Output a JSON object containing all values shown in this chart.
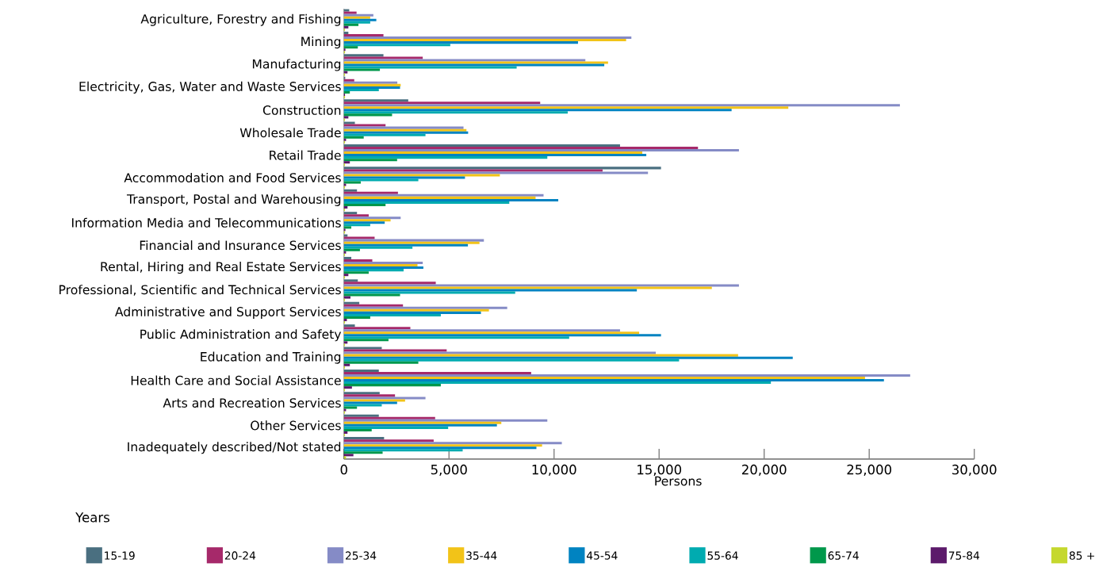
{
  "chart_data": {
    "type": "bar",
    "orientation": "horizontal",
    "xlabel": "Persons",
    "legend_title": "Years",
    "legend": "bottom",
    "categories": [
      "Agriculture, Forestry and Fishing",
      "Mining",
      "Manufacturing",
      "Electricity, Gas, Water and Waste Services",
      "Construction",
      "Wholesale Trade",
      "Retail Trade",
      "Accommodation and Food Services",
      "Transport, Postal and Warehousing",
      "Information Media and Telecommunications",
      "Financial and Insurance Services",
      "Rental, Hiring and Real Estate Services",
      "Professional, Scientific and Technical Services",
      "Administrative and Support Services",
      "Public Administration and Safety",
      "Education and Training",
      "Health Care and Social Assistance",
      "Arts and Recreation Services",
      "Other Services",
      "Inadequately described/Not stated"
    ],
    "xlim": [
      0,
      30000
    ],
    "xticks": [
      0,
      {
        "value": 5000,
        "label": "5,000"
      },
      {
        "value": 10000,
        "label": "10,000"
      },
      {
        "value": 15000,
        "label": "15,000"
      },
      {
        "value": 20000,
        "label": "20,000"
      },
      {
        "value": 25000,
        "label": "25,000"
      },
      {
        "value": 30000,
        "label": "30,000"
      }
    ],
    "series": [
      {
        "name": "15-19",
        "color": "#4a6f80",
        "values": [
          250,
          210,
          1880,
          60,
          3060,
          520,
          13140,
          15090,
          620,
          620,
          170,
          350,
          660,
          730,
          520,
          1800,
          1660,
          1700,
          1660,
          1910
        ]
      },
      {
        "name": "20-24",
        "color": "#a6296a",
        "values": [
          600,
          1880,
          3750,
          490,
          9340,
          1980,
          16850,
          12310,
          2570,
          1180,
          1460,
          1350,
          4370,
          2810,
          3160,
          4890,
          8910,
          2430,
          4340,
          4270
        ]
      },
      {
        "name": "25-34",
        "color": "#858bc6",
        "values": [
          1400,
          13680,
          11490,
          2540,
          26460,
          5690,
          18800,
          14470,
          9500,
          2700,
          6660,
          3750,
          18800,
          7770,
          13140,
          14840,
          26950,
          3880,
          9680,
          10370
        ]
      },
      {
        "name": "35-44",
        "color": "#f2c318",
        "values": [
          1250,
          13430,
          12570,
          2700,
          21150,
          5830,
          14200,
          7420,
          9120,
          2220,
          6450,
          3500,
          17510,
          6900,
          14050,
          18760,
          24800,
          2910,
          7490,
          9430
        ]
      },
      {
        "name": "45-54",
        "color": "#0083c1",
        "values": [
          1540,
          11140,
          12390,
          2670,
          18450,
          5910,
          14390,
          5760,
          10200,
          1940,
          5900,
          3780,
          13940,
          6520,
          15090,
          21360,
          25700,
          2530,
          7280,
          9160
        ]
      },
      {
        "name": "55-64",
        "color": "#00abb0",
        "values": [
          1250,
          5060,
          8220,
          1660,
          10650,
          3880,
          9680,
          3540,
          7870,
          1250,
          3260,
          2840,
          8150,
          4610,
          10720,
          15950,
          20320,
          1800,
          4960,
          5650
        ]
      },
      {
        "name": "65-74",
        "color": "#00984b",
        "values": [
          690,
          660,
          1710,
          280,
          2290,
          940,
          2530,
          800,
          1980,
          350,
          760,
          1180,
          2670,
          1250,
          2120,
          3540,
          4610,
          620,
          1320,
          1840
        ]
      },
      {
        "name": "75-84",
        "color": "#5c1a6b",
        "values": [
          210,
          70,
          170,
          50,
          210,
          100,
          280,
          100,
          170,
          70,
          100,
          210,
          310,
          140,
          170,
          280,
          380,
          100,
          170,
          450
        ]
      },
      {
        "name": "85 +",
        "color": "#c5d82e",
        "values": [
          50,
          50,
          50,
          50,
          50,
          50,
          50,
          50,
          50,
          50,
          50,
          50,
          50,
          50,
          50,
          50,
          50,
          50,
          50,
          100
        ]
      }
    ]
  }
}
